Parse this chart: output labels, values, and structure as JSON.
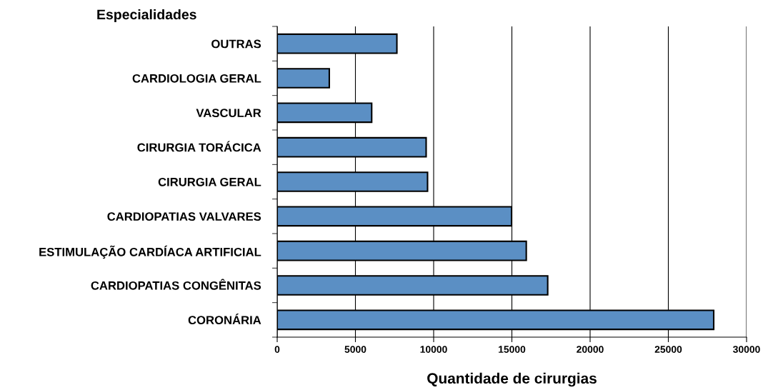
{
  "chart_data": {
    "type": "bar",
    "orientation": "horizontal",
    "ylabel": "Especialidades",
    "xlabel": "Quantidade de cirurgias",
    "categories": [
      "OUTRAS",
      "CARDIOLOGIA GERAL",
      "VASCULAR",
      "CIRURGIA TORÁCICA",
      "CIRURGIA GERAL",
      "CARDIOPATIAS VALVARES",
      "ESTIMULAÇÃO CARDÍACA ARTIFICIAL",
      "CARDIOPATIAS CONGÊNITAS",
      "CORONÁRIA"
    ],
    "values": [
      7650,
      3330,
      6040,
      9520,
      9610,
      14980,
      15920,
      17290,
      27900
    ],
    "color": "#5b8fc4",
    "xlim": [
      0,
      30000
    ],
    "xticks": [
      0,
      5000,
      10000,
      15000,
      20000,
      25000,
      30000
    ],
    "grid": "x"
  }
}
